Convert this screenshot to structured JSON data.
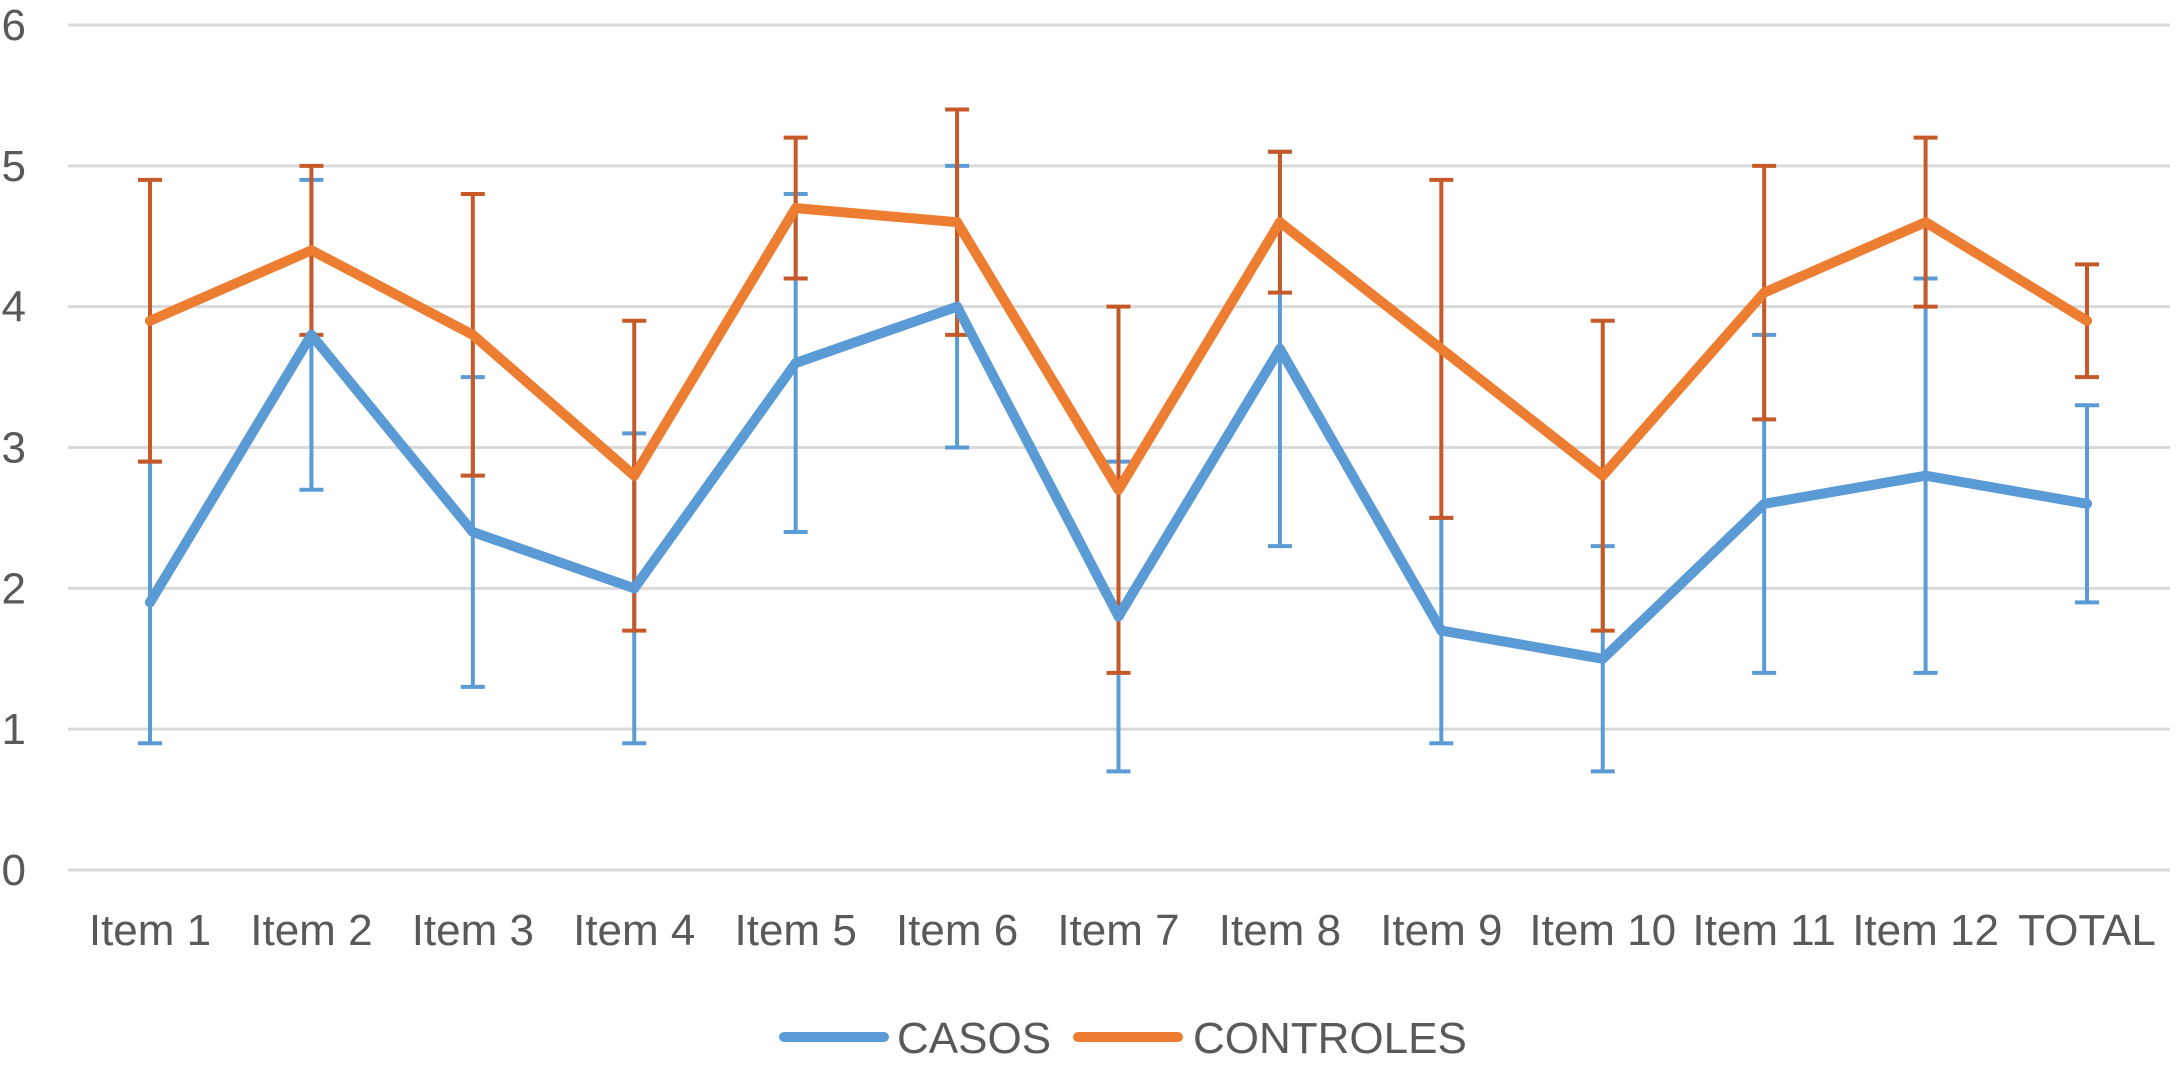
{
  "chart_data": {
    "type": "line",
    "title": "",
    "xlabel": "",
    "ylabel": "",
    "ylim": [
      0,
      6
    ],
    "yticks": [
      0,
      1,
      2,
      3,
      4,
      5,
      6
    ],
    "grid": true,
    "legend_position": "bottom",
    "categories": [
      "Item 1",
      "Item 2",
      "Item 3",
      "Item 4",
      "Item 5",
      "Item 6",
      "Item 7",
      "Item 8",
      "Item 9",
      "Item 10",
      "Item 11",
      "Item 12",
      "TOTAL"
    ],
    "series": [
      {
        "name": "CASOS",
        "color": "#5b9bd5",
        "error_color": "#5b9bd5",
        "values": [
          1.9,
          3.8,
          2.4,
          2.0,
          3.6,
          4.0,
          1.8,
          3.7,
          1.7,
          1.5,
          2.6,
          2.8,
          2.6
        ],
        "error_low": [
          0.9,
          2.7,
          1.3,
          0.9,
          2.4,
          3.0,
          0.7,
          2.3,
          0.9,
          0.7,
          1.4,
          1.4,
          1.9
        ],
        "error_high": [
          2.9,
          4.9,
          3.5,
          3.1,
          4.8,
          5.0,
          2.9,
          5.1,
          2.5,
          2.3,
          3.8,
          4.2,
          3.3
        ]
      },
      {
        "name": "CONTROLES",
        "color": "#ed7d31",
        "error_color": "#c55a28",
        "values": [
          3.9,
          4.4,
          3.8,
          2.8,
          4.7,
          4.6,
          2.7,
          4.6,
          3.7,
          2.8,
          4.1,
          4.6,
          3.9
        ],
        "error_low": [
          2.9,
          3.8,
          2.8,
          1.7,
          4.2,
          3.8,
          1.4,
          4.1,
          2.5,
          1.7,
          3.2,
          4.0,
          3.5
        ],
        "error_high": [
          4.9,
          5.0,
          4.8,
          3.9,
          5.2,
          5.4,
          4.0,
          5.1,
          4.9,
          3.9,
          5.0,
          5.2,
          4.3
        ]
      }
    ]
  }
}
